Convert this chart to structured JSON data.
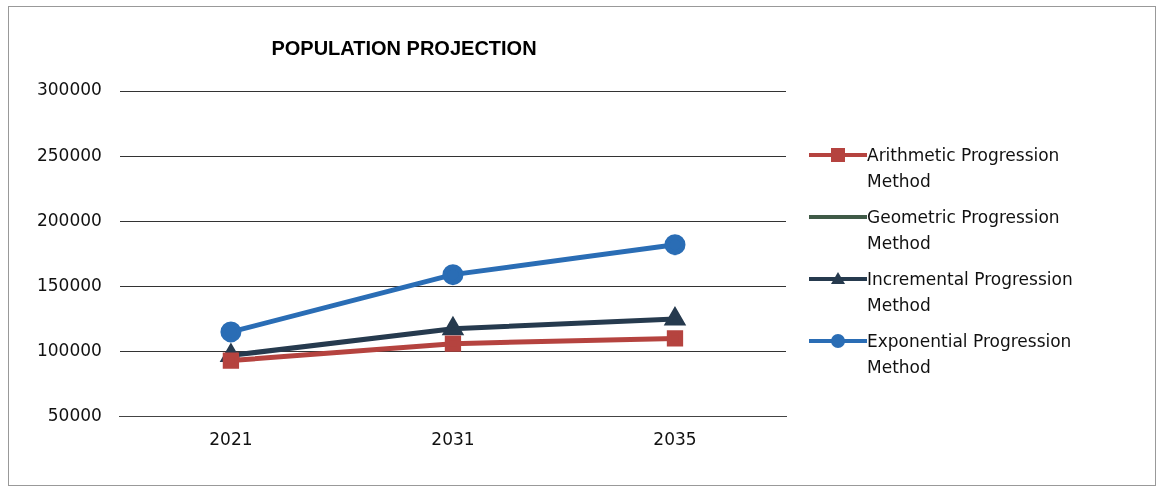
{
  "chart_data": {
    "type": "line",
    "title": "POPULATION PROJECTION",
    "categories": [
      "2021",
      "2031",
      "2035"
    ],
    "series": [
      {
        "name": "Arithmetic Progression Method",
        "color": "#b5433f",
        "marker": "square",
        "values": [
          93000,
          106000,
          110000
        ]
      },
      {
        "name": "Geometric Progression Method",
        "color": "#3f5a47",
        "marker": "none",
        "values": [
          null,
          null,
          null
        ]
      },
      {
        "name": "Incremental Progression Method",
        "color": "#263a4e",
        "marker": "triangle",
        "values": [
          97000,
          117500,
          125000
        ]
      },
      {
        "name": "Exponential Progression Method",
        "color": "#2a6db5",
        "marker": "circle",
        "values": [
          115000,
          159000,
          182000
        ]
      }
    ],
    "ylim": [
      50000,
      300000
    ],
    "yticks": [
      50000,
      100000,
      150000,
      200000,
      250000,
      300000
    ],
    "grid": "y",
    "legend": "right"
  }
}
